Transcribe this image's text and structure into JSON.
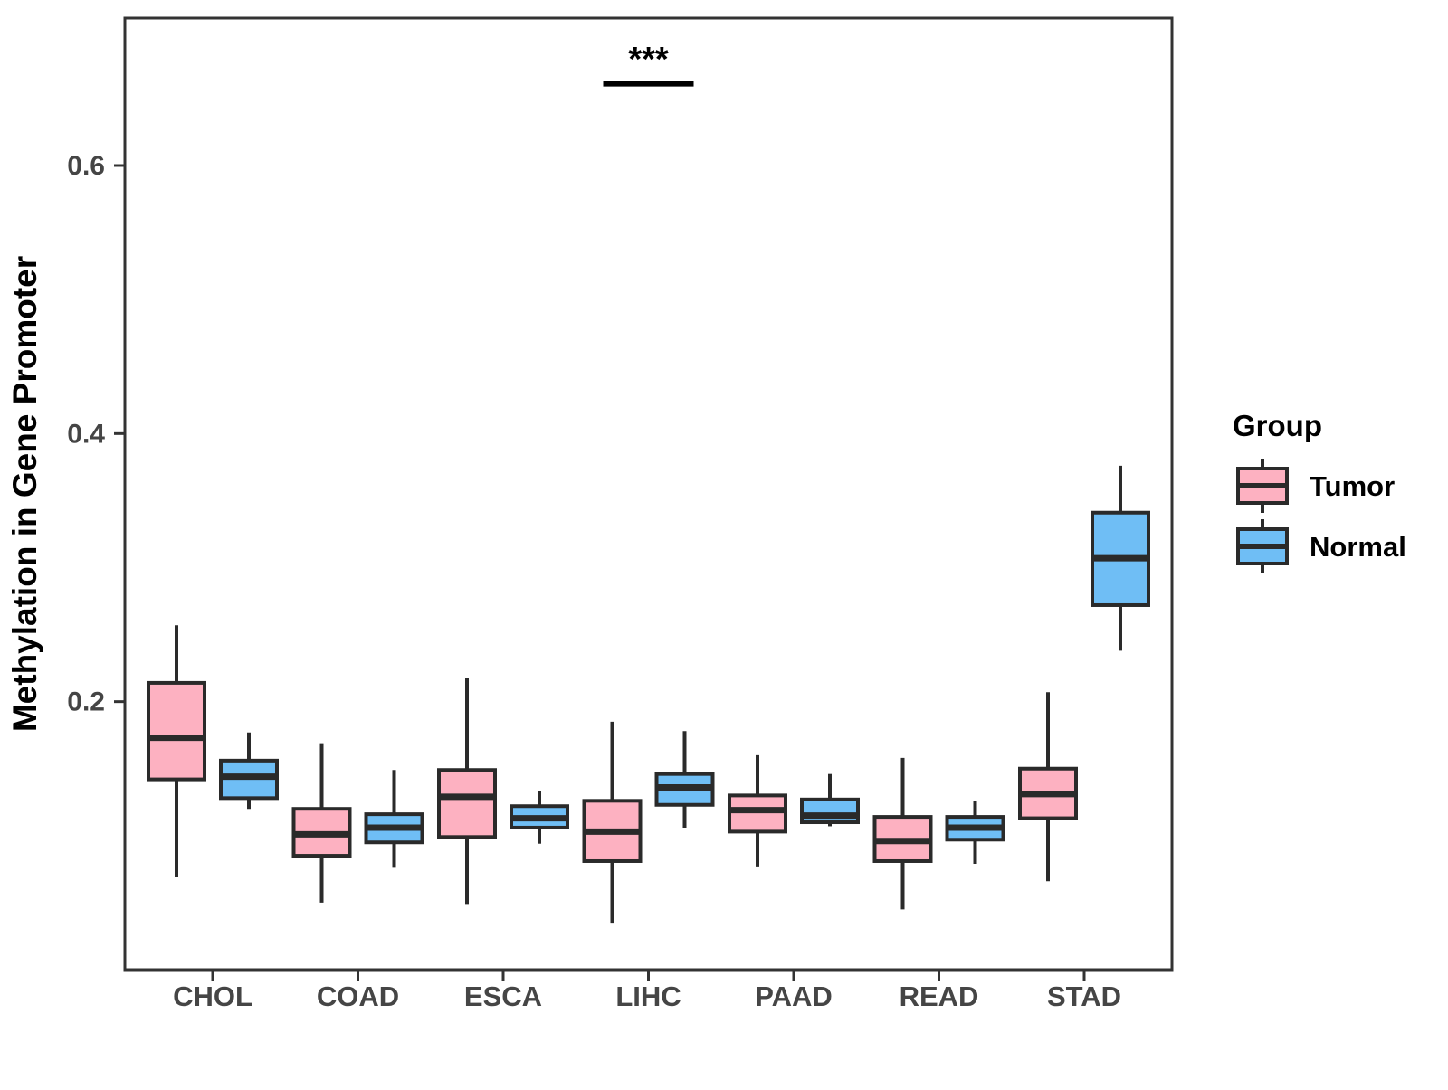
{
  "figure": {
    "background": "#ffffff"
  },
  "colors": {
    "tumor_fill": "#FDB1C1",
    "normal_fill": "#6FBEF5",
    "box_border": "#2a2a2a",
    "axis_line": "#333333",
    "tick_text": "#454545",
    "title_text": "#000000",
    "annotation_text": "#000000"
  },
  "chart_data": {
    "type": "boxplot",
    "title": "",
    "xlabel": "",
    "ylabel": "Methylation in Gene Promoter",
    "grid": false,
    "ylim": [
      0,
      0.71
    ],
    "y_ticks": [
      {
        "value": 0.2,
        "label": "0.2"
      },
      {
        "value": 0.4,
        "label": "0.4"
      },
      {
        "value": 0.6,
        "label": "0.6"
      }
    ],
    "categories": [
      "CHOL",
      "COAD",
      "ESCA",
      "LIHC",
      "PAAD",
      "READ",
      "STAD"
    ],
    "series": [
      {
        "name": "Tumor",
        "fill": "#FDB1C1",
        "boxes": [
          {
            "category": "CHOL",
            "lower": 0.069,
            "q1": 0.142,
            "median": 0.173,
            "q3": 0.214,
            "upper": 0.257
          },
          {
            "category": "COAD",
            "lower": 0.05,
            "q1": 0.085,
            "median": 0.101,
            "q3": 0.12,
            "upper": 0.169
          },
          {
            "category": "ESCA",
            "lower": 0.049,
            "q1": 0.099,
            "median": 0.129,
            "q3": 0.149,
            "upper": 0.218
          },
          {
            "category": "LIHC",
            "lower": 0.035,
            "q1": 0.081,
            "median": 0.103,
            "q3": 0.126,
            "upper": 0.185
          },
          {
            "category": "PAAD",
            "lower": 0.077,
            "q1": 0.103,
            "median": 0.119,
            "q3": 0.13,
            "upper": 0.16
          },
          {
            "category": "READ",
            "lower": 0.045,
            "q1": 0.081,
            "median": 0.096,
            "q3": 0.114,
            "upper": 0.158
          },
          {
            "category": "STAD",
            "lower": 0.066,
            "q1": 0.113,
            "median": 0.131,
            "q3": 0.15,
            "upper": 0.207
          }
        ]
      },
      {
        "name": "Normal",
        "fill": "#6FBEF5",
        "boxes": [
          {
            "category": "CHOL",
            "lower": 0.12,
            "q1": 0.128,
            "median": 0.144,
            "q3": 0.156,
            "upper": 0.177
          },
          {
            "category": "COAD",
            "lower": 0.076,
            "q1": 0.095,
            "median": 0.106,
            "q3": 0.116,
            "upper": 0.149
          },
          {
            "category": "ESCA",
            "lower": 0.094,
            "q1": 0.106,
            "median": 0.113,
            "q3": 0.122,
            "upper": 0.133
          },
          {
            "category": "LIHC",
            "lower": 0.106,
            "q1": 0.123,
            "median": 0.136,
            "q3": 0.146,
            "upper": 0.178
          },
          {
            "category": "PAAD",
            "lower": 0.107,
            "q1": 0.11,
            "median": 0.115,
            "q3": 0.127,
            "upper": 0.146
          },
          {
            "category": "READ",
            "lower": 0.079,
            "q1": 0.097,
            "median": 0.106,
            "q3": 0.114,
            "upper": 0.126
          },
          {
            "category": "STAD",
            "lower": 0.238,
            "q1": 0.272,
            "median": 0.307,
            "q3": 0.341,
            "upper": 0.376
          }
        ]
      }
    ],
    "annotation": {
      "text": "***",
      "category": "LIHC",
      "bar_y": 0.661,
      "text_y": 0.671
    },
    "legend": {
      "position": "right",
      "title": "Group",
      "entries": [
        {
          "label": "Tumor",
          "fill": "#FDB1C1"
        },
        {
          "label": "Normal",
          "fill": "#6FBEF5"
        }
      ]
    }
  }
}
